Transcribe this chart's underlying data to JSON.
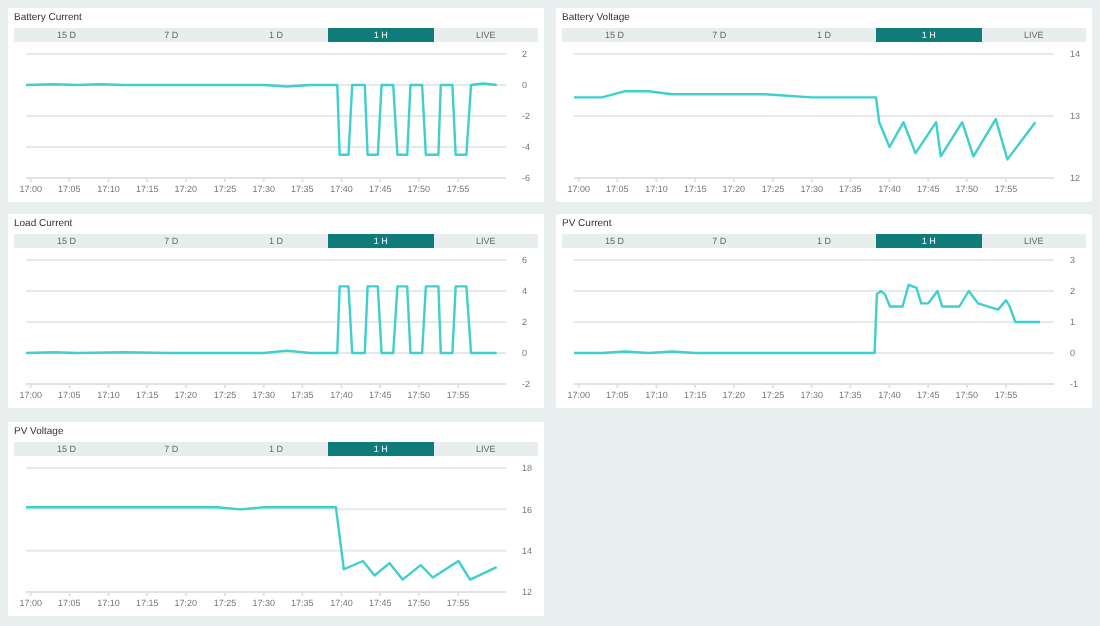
{
  "chart_data": [
    {
      "type": "line",
      "title": "Battery Current",
      "annotations": [
        "15 D",
        "7 D",
        "1 D",
        "1 H",
        "LIVE"
      ],
      "xlim": [
        16.99,
        18.02
      ],
      "xticks": [
        {
          "value": 17,
          "label": "17:00"
        },
        {
          "value": 17.083,
          "label": "17:05"
        },
        {
          "value": 17.167,
          "label": "17:10"
        },
        {
          "value": 17.25,
          "label": "17:15"
        },
        {
          "value": 17.333,
          "label": "17:20"
        },
        {
          "value": 17.417,
          "label": "17:25"
        },
        {
          "value": 17.5,
          "label": "17:30"
        },
        {
          "value": 17.583,
          "label": "17:35"
        },
        {
          "value": 17.667,
          "label": "17:40"
        },
        {
          "value": 17.75,
          "label": "17:45"
        },
        {
          "value": 17.833,
          "label": "17:50"
        },
        {
          "value": 17.917,
          "label": "17:55"
        }
      ],
      "ylim": [
        -6,
        2
      ],
      "yticks": [
        -6,
        -4,
        -2,
        0,
        2
      ],
      "grid": "y",
      "series": [
        {
          "color": "#3fcfcf",
          "x": [
            16.99,
            17.05,
            17.1,
            17.15,
            17.2,
            17.3,
            17.4,
            17.5,
            17.55,
            17.6,
            17.65,
            17.658,
            17.663,
            17.682,
            17.69,
            17.717,
            17.723,
            17.745,
            17.753,
            17.778,
            17.787,
            17.808,
            17.815,
            17.84,
            17.848,
            17.875,
            17.88,
            17.905,
            17.912,
            17.935,
            17.945,
            17.97,
            18.0
          ],
          "values": [
            0,
            0.05,
            0,
            0.05,
            0,
            0,
            0,
            0,
            -0.1,
            0,
            0,
            0,
            -4.5,
            -4.5,
            0,
            0,
            -4.5,
            -4.5,
            0,
            0,
            -4.5,
            -4.5,
            0,
            0,
            -4.5,
            -4.5,
            0,
            0,
            -4.5,
            -4.5,
            0,
            0.1,
            0
          ]
        }
      ]
    },
    {
      "type": "line",
      "title": "Battery Voltage",
      "annotations": [
        "15 D",
        "7 D",
        "1 D",
        "1 H",
        "LIVE"
      ],
      "xlim": [
        16.99,
        18.02
      ],
      "xticks": [
        {
          "value": 17,
          "label": "17:00"
        },
        {
          "value": 17.083,
          "label": "17:05"
        },
        {
          "value": 17.167,
          "label": "17:10"
        },
        {
          "value": 17.25,
          "label": "17:15"
        },
        {
          "value": 17.333,
          "label": "17:20"
        },
        {
          "value": 17.417,
          "label": "17:25"
        },
        {
          "value": 17.5,
          "label": "17:30"
        },
        {
          "value": 17.583,
          "label": "17:35"
        },
        {
          "value": 17.667,
          "label": "17:40"
        },
        {
          "value": 17.75,
          "label": "17:45"
        },
        {
          "value": 17.833,
          "label": "17:50"
        },
        {
          "value": 17.917,
          "label": "17:55"
        }
      ],
      "ylim": [
        12,
        14
      ],
      "yticks": [
        12,
        13,
        14
      ],
      "grid": "y",
      "series": [
        {
          "color": "#3fcfcf",
          "x": [
            16.99,
            17.05,
            17.1,
            17.15,
            17.2,
            17.25,
            17.3,
            17.4,
            17.5,
            17.55,
            17.638,
            17.645,
            17.667,
            17.697,
            17.723,
            17.767,
            17.777,
            17.823,
            17.847,
            17.895,
            17.92,
            17.98
          ],
          "values": [
            13.3,
            13.3,
            13.4,
            13.4,
            13.35,
            13.35,
            13.35,
            13.35,
            13.3,
            13.3,
            13.3,
            12.9,
            12.5,
            12.9,
            12.4,
            12.9,
            12.35,
            12.9,
            12.35,
            12.95,
            12.3,
            12.9
          ]
        }
      ]
    },
    {
      "type": "line",
      "title": "Load Current",
      "annotations": [
        "15 D",
        "7 D",
        "1 D",
        "1 H",
        "LIVE"
      ],
      "xlim": [
        16.99,
        18.02
      ],
      "xticks": [
        {
          "value": 17,
          "label": "17:00"
        },
        {
          "value": 17.083,
          "label": "17:05"
        },
        {
          "value": 17.167,
          "label": "17:10"
        },
        {
          "value": 17.25,
          "label": "17:15"
        },
        {
          "value": 17.333,
          "label": "17:20"
        },
        {
          "value": 17.417,
          "label": "17:25"
        },
        {
          "value": 17.5,
          "label": "17:30"
        },
        {
          "value": 17.583,
          "label": "17:35"
        },
        {
          "value": 17.667,
          "label": "17:40"
        },
        {
          "value": 17.75,
          "label": "17:45"
        },
        {
          "value": 17.833,
          "label": "17:50"
        },
        {
          "value": 17.917,
          "label": "17:55"
        }
      ],
      "ylim": [
        -2,
        6
      ],
      "yticks": [
        -2,
        0,
        2,
        4,
        6
      ],
      "grid": "y",
      "series": [
        {
          "color": "#3fcfcf",
          "x": [
            16.99,
            17.05,
            17.1,
            17.2,
            17.3,
            17.4,
            17.5,
            17.55,
            17.6,
            17.65,
            17.658,
            17.663,
            17.682,
            17.69,
            17.717,
            17.723,
            17.745,
            17.753,
            17.778,
            17.787,
            17.808,
            17.815,
            17.84,
            17.848,
            17.875,
            17.88,
            17.905,
            17.912,
            17.935,
            17.945,
            17.97,
            18.0
          ],
          "values": [
            0,
            0.05,
            0,
            0.05,
            0,
            0,
            0,
            0.15,
            0,
            0,
            0,
            4.3,
            4.3,
            0,
            0,
            4.3,
            4.3,
            0,
            0,
            4.3,
            4.3,
            0,
            0,
            4.3,
            4.3,
            0,
            0,
            4.3,
            4.3,
            0,
            0,
            0
          ]
        }
      ]
    },
    {
      "type": "line",
      "title": "PV Current",
      "annotations": [
        "15 D",
        "7 D",
        "1 D",
        "1 H",
        "LIVE"
      ],
      "xlim": [
        16.99,
        18.02
      ],
      "xticks": [
        {
          "value": 17,
          "label": "17:00"
        },
        {
          "value": 17.083,
          "label": "17:05"
        },
        {
          "value": 17.167,
          "label": "17:10"
        },
        {
          "value": 17.25,
          "label": "17:15"
        },
        {
          "value": 17.333,
          "label": "17:20"
        },
        {
          "value": 17.417,
          "label": "17:25"
        },
        {
          "value": 17.5,
          "label": "17:30"
        },
        {
          "value": 17.583,
          "label": "17:35"
        },
        {
          "value": 17.667,
          "label": "17:40"
        },
        {
          "value": 17.75,
          "label": "17:45"
        },
        {
          "value": 17.833,
          "label": "17:50"
        },
        {
          "value": 17.917,
          "label": "17:55"
        }
      ],
      "ylim": [
        -1,
        3
      ],
      "yticks": [
        -1,
        0,
        1,
        2,
        3
      ],
      "grid": "y",
      "series": [
        {
          "color": "#3fcfcf",
          "x": [
            16.99,
            17.05,
            17.1,
            17.15,
            17.2,
            17.25,
            17.3,
            17.35,
            17.4,
            17.45,
            17.5,
            17.55,
            17.6,
            17.635,
            17.64,
            17.648,
            17.657,
            17.668,
            17.695,
            17.708,
            17.725,
            17.735,
            17.75,
            17.77,
            17.78,
            17.79,
            17.817,
            17.837,
            17.857,
            17.9,
            17.917,
            17.925,
            17.937,
            17.99
          ],
          "values": [
            0,
            0,
            0.05,
            0,
            0.05,
            0,
            0,
            0,
            0,
            0,
            0,
            0,
            0,
            0,
            1.9,
            2.0,
            1.9,
            1.5,
            1.5,
            2.2,
            2.1,
            1.6,
            1.6,
            2.0,
            1.5,
            1.5,
            1.5,
            2.0,
            1.6,
            1.4,
            1.7,
            1.5,
            1.0,
            1.0
          ]
        }
      ]
    },
    {
      "type": "line",
      "title": "PV Voltage",
      "annotations": [
        "15 D",
        "7 D",
        "1 D",
        "1 H",
        "LIVE"
      ],
      "xlim": [
        16.99,
        18.02
      ],
      "xticks": [
        {
          "value": 17,
          "label": "17:00"
        },
        {
          "value": 17.083,
          "label": "17:05"
        },
        {
          "value": 17.167,
          "label": "17:10"
        },
        {
          "value": 17.25,
          "label": "17:15"
        },
        {
          "value": 17.333,
          "label": "17:20"
        },
        {
          "value": 17.417,
          "label": "17:25"
        },
        {
          "value": 17.5,
          "label": "17:30"
        },
        {
          "value": 17.583,
          "label": "17:35"
        },
        {
          "value": 17.667,
          "label": "17:40"
        },
        {
          "value": 17.75,
          "label": "17:45"
        },
        {
          "value": 17.833,
          "label": "17:50"
        },
        {
          "value": 17.917,
          "label": "17:55"
        }
      ],
      "ylim": [
        12,
        18
      ],
      "yticks": [
        12,
        14,
        16,
        18
      ],
      "grid": "y",
      "series": [
        {
          "color": "#3fcfcf",
          "x": [
            16.99,
            17.05,
            17.1,
            17.2,
            17.3,
            17.4,
            17.45,
            17.5,
            17.6,
            17.65,
            17.655,
            17.672,
            17.713,
            17.738,
            17.77,
            17.798,
            17.837,
            17.863,
            17.918,
            17.943,
            18.0
          ],
          "values": [
            16.1,
            16.1,
            16.1,
            16.1,
            16.1,
            16.1,
            16.0,
            16.1,
            16.1,
            16.1,
            16.1,
            13.1,
            13.5,
            12.8,
            13.4,
            12.6,
            13.3,
            12.7,
            13.5,
            12.6,
            13.2
          ]
        }
      ]
    }
  ]
}
